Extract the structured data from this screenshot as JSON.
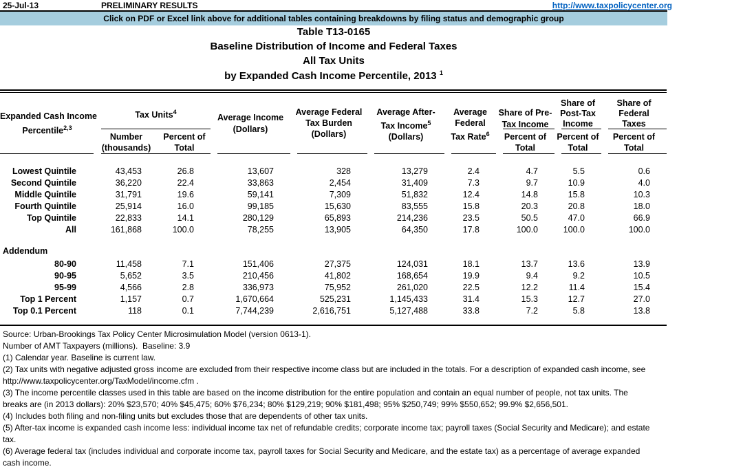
{
  "page": {
    "date": "25-Jul-13",
    "status": "PRELIMINARY RESULTS",
    "url": "http://www.taxpolicycenter.org",
    "banner": "Click on PDF or Excel link above for additional tables containing breakdowns by filing status and demographic group"
  },
  "title": {
    "table_number": "Table T13-0165",
    "line2": "Baseline Distribution of Income and Federal Taxes",
    "line3": "All Tax Units",
    "line4": "by Expanded Cash Income Percentile, 2013",
    "line4_note": "1"
  },
  "table": {
    "headers": {
      "col_income_percentile": {
        "line1": "Expanded Cash Income",
        "line2": "Percentile",
        "note": "2,3"
      },
      "group_tax_units": {
        "label": "Tax Units",
        "note": "4"
      },
      "col_number": {
        "line1": "Number",
        "line2": "(thousands)"
      },
      "col_percent_total": {
        "line1": "Percent of",
        "line2": "Total"
      },
      "col_avg_income": {
        "line1": "Average Income",
        "line2": "(Dollars)"
      },
      "col_avg_burden": {
        "line1": "Average Federal",
        "line2": "Tax Burden",
        "line3": "(Dollars)"
      },
      "col_avg_after_tax": {
        "line1": "Average After-",
        "line2": "Tax Income",
        "note": "5",
        "line3": "(Dollars)"
      },
      "col_avg_rate": {
        "line1": "Average",
        "line2": "Federal",
        "line3": "Tax Rate",
        "note": "6"
      },
      "group_share_pretax": {
        "line1": "Share of Pre-",
        "line2": "Tax Income",
        "sub1": "Percent of",
        "sub2": "Total"
      },
      "group_share_posttax": {
        "line1": "Share of",
        "line2": "Post-Tax",
        "line3": "Income",
        "sub1": "Percent of",
        "sub2": "Total"
      },
      "group_share_fedtax": {
        "line1": "Share of",
        "line2": "Federal",
        "line3": "Taxes",
        "sub1": "Percent of",
        "sub2": "Total"
      }
    },
    "main_rows": [
      [
        "Lowest Quintile",
        "43,453",
        "26.8",
        "13,607",
        "328",
        "13,279",
        "2.4",
        "4.7",
        "5.5",
        "0.6"
      ],
      [
        "Second Quintile",
        "36,220",
        "22.4",
        "33,863",
        "2,454",
        "31,409",
        "7.3",
        "9.7",
        "10.9",
        "4.0"
      ],
      [
        "Middle Quintile",
        "31,791",
        "19.6",
        "59,141",
        "7,309",
        "51,832",
        "12.4",
        "14.8",
        "15.8",
        "10.3"
      ],
      [
        "Fourth Quintile",
        "25,914",
        "16.0",
        "99,185",
        "15,630",
        "83,555",
        "15.8",
        "20.3",
        "20.8",
        "18.0"
      ],
      [
        "Top Quintile",
        "22,833",
        "14.1",
        "280,129",
        "65,893",
        "214,236",
        "23.5",
        "50.5",
        "47.0",
        "66.9"
      ],
      [
        "All",
        "161,868",
        "100.0",
        "78,255",
        "13,905",
        "64,350",
        "17.8",
        "100.0",
        "100.0",
        "100.0"
      ]
    ],
    "addendum_label": "Addendum",
    "addendum_rows": [
      [
        "80-90",
        "11,458",
        "7.1",
        "151,406",
        "27,375",
        "124,031",
        "18.1",
        "13.7",
        "13.6",
        "13.9"
      ],
      [
        "90-95",
        "5,652",
        "3.5",
        "210,456",
        "41,802",
        "168,654",
        "19.9",
        "9.4",
        "9.2",
        "10.5"
      ],
      [
        "95-99",
        "4,566",
        "2.8",
        "336,973",
        "75,952",
        "261,020",
        "22.5",
        "12.2",
        "11.4",
        "15.4"
      ],
      [
        "Top 1 Percent",
        "1,157",
        "0.7",
        "1,670,664",
        "525,231",
        "1,145,433",
        "31.4",
        "15.3",
        "12.7",
        "27.0"
      ],
      [
        "Top 0.1 Percent",
        "118",
        "0.1",
        "7,744,239",
        "2,616,751",
        "5,127,488",
        "33.8",
        "7.2",
        "5.8",
        "13.8"
      ]
    ]
  },
  "footnotes": [
    "Source: Urban-Brookings Tax Policy Center Microsimulation Model (version 0613-1).",
    "Number of AMT Taxpayers (millions).  Baseline: 3.9",
    "(1) Calendar year. Baseline is current law.",
    "(2) Tax units with negative adjusted gross income are excluded from their respective income class but are included in the totals. For a description of expanded cash income, see\nhttp://www.taxpolicycenter.org/TaxModel/income.cfm .",
    "(3) The income percentile classes used in this table are based on the income distribution for the entire population and contain an equal number of people, not tax units. The\nbreaks are (in 2013 dollars): 20% $23,570; 40% $45,475; 60% $76,234; 80% $129,219; 90% $181,498; 95% $250,749; 99% $550,652; 99.9% $2,656,501.",
    "(4) Includes both filing and non-filing units but excludes those that are dependents of other tax units.",
    "(5) After-tax income is expanded cash income less: individual income tax net of refundable credits; corporate income tax; payroll taxes (Social Security and Medicare); and estate\ntax.",
    "(6) Average federal tax (includes individual and corporate income tax, payroll taxes for Social Security and Medicare, and the estate tax) as a percentage of average expanded\ncash income."
  ]
}
